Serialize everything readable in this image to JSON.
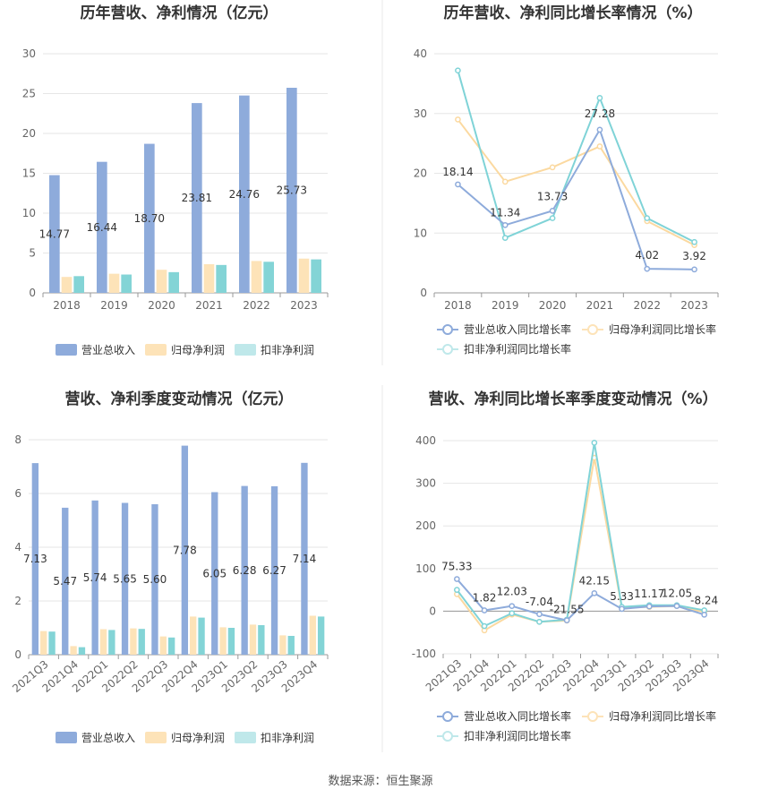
{
  "colors": {
    "revenue": "#8eabdb",
    "parent_net_profit": "#fde3b8",
    "deducted_net_profit": "#83d4d6",
    "revenue_line": "#8eabdb",
    "parent_line": "#fbd9a0",
    "deducted_line": "#7fd3d7"
  },
  "legend": {
    "revenue": "营业总收入",
    "parent": "归母净利润",
    "deducted": "扣非净利润",
    "revenue_growth": "营业总收入同比增长率",
    "parent_growth": "归母净利润同比增长率",
    "deducted_growth": "扣非净利润同比增长率"
  },
  "source": "数据来源：恒生聚源",
  "chart_data": [
    {
      "type": "bar",
      "title": "历年营收、净利情况（亿元）",
      "categories": [
        "2018",
        "2019",
        "2020",
        "2021",
        "2022",
        "2023"
      ],
      "ylim": [
        0,
        30
      ],
      "yticks": [
        "0",
        "5",
        "10",
        "15",
        "20",
        "25",
        "30"
      ],
      "series": [
        {
          "name": "营业总收入",
          "values": [
            14.77,
            16.44,
            18.7,
            23.81,
            24.76,
            25.73
          ]
        },
        {
          "name": "归母净利润",
          "values": [
            2.0,
            2.4,
            2.9,
            3.6,
            4.0,
            4.3
          ]
        },
        {
          "name": "扣非净利润",
          "values": [
            2.1,
            2.3,
            2.6,
            3.5,
            3.9,
            4.2
          ]
        }
      ],
      "data_labels": [
        "14.77",
        "16.44",
        "18.70",
        "23.81",
        "24.76",
        "25.73"
      ]
    },
    {
      "type": "line",
      "title": "历年营收、净利同比增长率情况（%）",
      "categories": [
        "2018",
        "2019",
        "2020",
        "2021",
        "2022",
        "2023"
      ],
      "ylim": [
        0,
        40
      ],
      "yticks": [
        "0",
        "10",
        "20",
        "30",
        "40"
      ],
      "series": [
        {
          "name": "营业总收入同比增长率",
          "values": [
            18.14,
            11.34,
            13.73,
            27.28,
            4.02,
            3.92
          ]
        },
        {
          "name": "归母净利润同比增长率",
          "values": [
            29.0,
            18.6,
            21.0,
            24.5,
            12.0,
            8.0
          ]
        },
        {
          "name": "扣非净利润同比增长率",
          "values": [
            37.2,
            9.2,
            12.5,
            32.6,
            12.5,
            8.5
          ]
        }
      ],
      "data_labels": [
        "18.14",
        "11.34",
        "13.73",
        "27.28",
        "4.02",
        "3.92"
      ]
    },
    {
      "type": "bar",
      "title": "营收、净利季度变动情况（亿元）",
      "categories": [
        "2021Q3",
        "2021Q4",
        "2022Q1",
        "2022Q2",
        "2022Q3",
        "2022Q4",
        "2023Q1",
        "2023Q2",
        "2023Q3",
        "2023Q4"
      ],
      "ylim": [
        0,
        8
      ],
      "yticks": [
        "0",
        "2",
        "4",
        "6",
        "8"
      ],
      "series": [
        {
          "name": "营业总收入",
          "values": [
            7.13,
            5.47,
            5.74,
            5.65,
            5.6,
            7.78,
            6.05,
            6.28,
            6.27,
            7.14
          ]
        },
        {
          "name": "归母净利润",
          "values": [
            0.88,
            0.32,
            0.95,
            0.98,
            0.68,
            1.42,
            1.02,
            1.12,
            0.72,
            1.45
          ]
        },
        {
          "name": "扣非净利润",
          "values": [
            0.86,
            0.28,
            0.92,
            0.96,
            0.64,
            1.38,
            1.0,
            1.1,
            0.7,
            1.42
          ]
        }
      ],
      "data_labels": [
        "7.13",
        "5.47",
        "5.74",
        "5.65",
        "5.60",
        "7.78",
        "6.05",
        "6.28",
        "6.27",
        "7.14"
      ]
    },
    {
      "type": "line",
      "title": "营收、净利同比增长率季度变动情况（%）",
      "categories": [
        "2021Q3",
        "2021Q4",
        "2022Q1",
        "2022Q2",
        "2022Q3",
        "2022Q4",
        "2023Q1",
        "2023Q2",
        "2023Q3",
        "2023Q4"
      ],
      "ylim": [
        -100,
        400
      ],
      "yticks": [
        "-100",
        "0",
        "100",
        "200",
        "300",
        "400"
      ],
      "series": [
        {
          "name": "营业总收入同比增长率",
          "values": [
            75.33,
            1.82,
            12.03,
            -7.04,
            -21.55,
            42.15,
            5.33,
            11.17,
            12.05,
            -8.24
          ]
        },
        {
          "name": "归母净利润同比增长率",
          "values": [
            40,
            -45,
            -8,
            -25,
            -22,
            360,
            8,
            10,
            12,
            -2
          ]
        },
        {
          "name": "扣非净利润同比增长率",
          "values": [
            50,
            -35,
            -5,
            -25,
            -20,
            395,
            10,
            14,
            14,
            2
          ]
        }
      ],
      "data_labels": [
        "75.33",
        "1.82",
        "12.03",
        "-7.04",
        "-21.55",
        "42.15",
        "5.33",
        "11.17",
        "12.05",
        "-8.24"
      ]
    }
  ]
}
